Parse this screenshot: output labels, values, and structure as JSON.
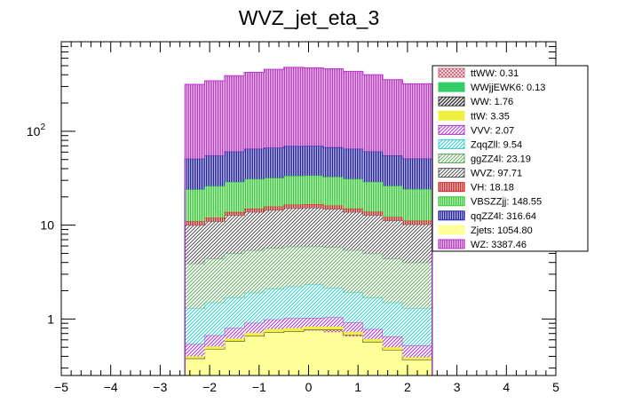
{
  "chart_data": {
    "type": "bar",
    "title": "WVZ_jet_eta_3",
    "xlabel": "",
    "ylabel": "",
    "xlim": [
      -5,
      5
    ],
    "ylim": [
      0.25,
      900
    ],
    "yscale": "log",
    "stacked": true,
    "x_ticks": [
      "−5",
      "−4",
      "−3",
      "−2",
      "−1",
      "0",
      "1",
      "2",
      "3",
      "4",
      "5"
    ],
    "y_ticks": [
      {
        "value": 1,
        "label": "1"
      },
      {
        "value": 10,
        "label": "10"
      },
      {
        "value": 100,
        "label": "10",
        "sup": "2"
      }
    ],
    "bin_edges": [
      -2.5,
      -2.1,
      -1.7,
      -1.3,
      -0.9,
      -0.5,
      -0.1,
      0.3,
      0.7,
      1.1,
      1.5,
      1.9,
      2.5
    ],
    "legend_position": "right",
    "series": [
      {
        "name": "Zjets",
        "label": "Zjets: 1054.80",
        "color": "#ffff99",
        "pattern": "solid",
        "values": [
          0.38,
          0.48,
          0.58,
          0.66,
          0.72,
          0.74,
          0.75,
          0.72,
          0.65,
          0.57,
          0.47,
          0.37
        ]
      },
      {
        "name": "ttWW",
        "label": "ttWW: 0.31",
        "color": "#cc6677",
        "pattern": "crosshatch",
        "values": [
          0,
          0,
          0,
          0,
          0,
          0,
          0.02,
          0.05,
          0.03,
          0,
          0,
          0
        ]
      },
      {
        "name": "WWjjEWK6",
        "label": "WWjjEWK6: 0.13",
        "color": "#33cc66",
        "pattern": "solid",
        "values": [
          0,
          0,
          0,
          0,
          0,
          0,
          0,
          0,
          0,
          0,
          0,
          0
        ]
      },
      {
        "name": "WW",
        "label": "WW: 1.76",
        "color": "#333333",
        "pattern": "diagonal-dense",
        "values": [
          0,
          0,
          0,
          0,
          0,
          0,
          0,
          0,
          0,
          0,
          0,
          0
        ]
      },
      {
        "name": "ttW",
        "label": "ttW: 3.35",
        "color": "#f0f040",
        "pattern": "solid",
        "values": [
          0.02,
          0.03,
          0.04,
          0.05,
          0.06,
          0.06,
          0.06,
          0.06,
          0.05,
          0.04,
          0.03,
          0.02
        ]
      },
      {
        "name": "VVV",
        "label": "VVV: 2.07",
        "color": "#aa33cc",
        "pattern": "diagonal",
        "values": [
          0.14,
          0.16,
          0.18,
          0.2,
          0.21,
          0.22,
          0.2,
          0.21,
          0.19,
          0.17,
          0.15,
          0.13
        ]
      },
      {
        "name": "ZqqZll",
        "label": "ZqqZll: 9.54",
        "color": "#33cccc",
        "pattern": "diagonal",
        "values": [
          0.76,
          0.83,
          0.9,
          1.0,
          1.1,
          1.2,
          1.3,
          1.1,
          1.0,
          0.9,
          0.85,
          0.78
        ]
      },
      {
        "name": "ggZZ4l",
        "label": "ggZZ4l: 23.19",
        "color": "#66aa66",
        "pattern": "diagonal",
        "values": [
          2.6,
          2.9,
          3.3,
          3.5,
          3.6,
          3.7,
          3.6,
          3.7,
          3.5,
          3.3,
          2.9,
          2.7
        ]
      },
      {
        "name": "WVZ",
        "label": "WVZ: 97.71",
        "color": "#555555",
        "pattern": "diagonal",
        "values": [
          6.1,
          6.6,
          7.7,
          8.4,
          8.8,
          9.2,
          9.4,
          9.0,
          8.4,
          7.8,
          6.8,
          6.2
        ]
      },
      {
        "name": "VH",
        "label": "VH: 18.18",
        "color": "#dd2222",
        "pattern": "vertical",
        "values": [
          1.0,
          1.05,
          1.1,
          1.2,
          1.3,
          1.4,
          1.4,
          1.3,
          1.2,
          1.1,
          1.0,
          0.95
        ]
      },
      {
        "name": "VBSZZjj",
        "label": "VBSZZjj: 148.55",
        "color": "#33cc33",
        "pattern": "vertical",
        "values": [
          13,
          14,
          15,
          16,
          16,
          17,
          17,
          16.5,
          16,
          15,
          14,
          13
        ]
      },
      {
        "name": "qqZZ4l",
        "label": "qqZZ4l: 316.64",
        "color": "#1a1aaa",
        "pattern": "vertical",
        "values": [
          27,
          29,
          32,
          34,
          35,
          36,
          36,
          35,
          34,
          32,
          29,
          27
        ]
      },
      {
        "name": "WZ",
        "label": "WZ: 3387.46",
        "color": "#bb33cc",
        "pattern": "vertical",
        "values": [
          265,
          290,
          330,
          360,
          390,
          410,
          405,
          395,
          370,
          340,
          300,
          270
        ]
      }
    ],
    "legend_order": [
      "ttWW",
      "WWjjEWK6",
      "WW",
      "ttW",
      "VVV",
      "ZqqZll",
      "ggZZ4l",
      "WVZ",
      "VH",
      "VBSZZjj",
      "qqZZ4l",
      "Zjets",
      "WZ"
    ]
  }
}
